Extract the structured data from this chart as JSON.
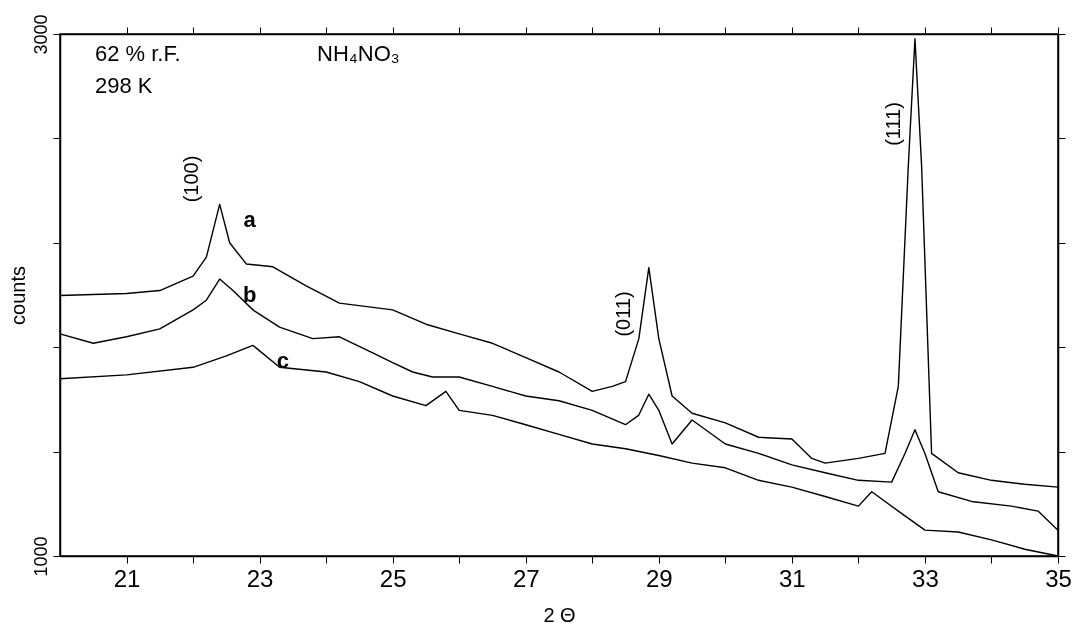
{
  "chart_data": {
    "type": "line",
    "xlabel": "2 Θ",
    "ylabel": "counts",
    "xlim": [
      20,
      35
    ],
    "ylim": [
      1000,
      3000
    ],
    "xticks": [
      21,
      {
        "value": 22,
        "label": null
      },
      23,
      {
        "value": 24,
        "label": null
      },
      25,
      {
        "value": 26,
        "label": null
      },
      27,
      {
        "value": 28,
        "label": null
      },
      29,
      {
        "value": 30,
        "label": null
      },
      31,
      {
        "value": 32,
        "label": null
      },
      33,
      {
        "value": 34,
        "label": null
      },
      35
    ],
    "yticks": [
      1000,
      {
        "value": 1400,
        "label": null
      },
      {
        "value": 1800,
        "label": null
      },
      {
        "value": 2200,
        "label": null
      },
      {
        "value": 2600,
        "label": null
      },
      3000
    ],
    "grid": false,
    "marker": "none",
    "line_style": "solid",
    "series": [
      {
        "name": "a",
        "color": "#000000",
        "x": [
          20,
          21,
          21.5,
          22,
          22.2,
          22.4,
          22.55,
          22.8,
          23.2,
          23.7,
          24.2,
          25,
          25.5,
          26,
          26.5,
          27,
          27.5,
          28,
          28.3,
          28.5,
          28.7,
          28.85,
          29,
          29.2,
          29.5,
          30,
          30.5,
          31,
          31.3,
          31.5,
          32,
          32.4,
          32.6,
          32.75,
          32.85,
          32.95,
          33.1,
          33.5,
          34,
          34.5,
          35
        ],
        "values": [
          1998,
          2006,
          2017,
          2072,
          2145,
          2347,
          2200,
          2119,
          2108,
          2035,
          1969,
          1943,
          1888,
          1851,
          1815,
          1760,
          1705,
          1631,
          1650,
          1668,
          1833,
          2105,
          1833,
          1613,
          1547,
          1510,
          1455,
          1448,
          1374,
          1356,
          1374,
          1393,
          1650,
          2494,
          2982,
          2494,
          1393,
          1319,
          1290,
          1275,
          1264
        ]
      },
      {
        "name": "b",
        "color": "#000000",
        "x": [
          20,
          20.5,
          21,
          21.5,
          22,
          22.2,
          22.4,
          22.6,
          22.9,
          23.3,
          23.8,
          24.2,
          24.7,
          25,
          25.3,
          25.6,
          26,
          26.5,
          27,
          27.5,
          28,
          28.5,
          28.7,
          28.85,
          29,
          29.2,
          29.5,
          30,
          30.5,
          31,
          31.5,
          32,
          32.5,
          32.7,
          32.85,
          33,
          33.2,
          33.7,
          34.3,
          34.7,
          35
        ],
        "values": [
          1851,
          1815,
          1840,
          1870,
          1943,
          1980,
          2061,
          2017,
          1943,
          1877,
          1833,
          1840,
          1778,
          1741,
          1705,
          1686,
          1686,
          1650,
          1613,
          1595,
          1558,
          1503,
          1540,
          1620,
          1558,
          1429,
          1521,
          1429,
          1393,
          1349,
          1319,
          1290,
          1283,
          1393,
          1484,
          1393,
          1246,
          1209,
          1191,
          1172,
          1099
        ]
      },
      {
        "name": "c",
        "color": "#000000",
        "x": [
          20,
          21,
          22,
          22.5,
          22.9,
          23.3,
          24,
          24.5,
          25,
          25.5,
          25.8,
          26,
          26.5,
          27,
          27.5,
          28,
          28.5,
          29,
          29.5,
          30,
          30.5,
          31,
          31.5,
          32,
          32.2,
          32.6,
          33,
          33.5,
          34,
          34.5,
          35
        ],
        "values": [
          1679,
          1694,
          1723,
          1767,
          1807,
          1723,
          1705,
          1668,
          1613,
          1576,
          1631,
          1558,
          1539,
          1503,
          1466,
          1429,
          1411,
          1385,
          1356,
          1338,
          1290,
          1264,
          1228,
          1191,
          1246,
          1172,
          1099,
          1092,
          1062,
          1026,
          1000
        ]
      }
    ],
    "annotations": [
      "62 % r.F.",
      "298 K",
      "NH₄NO₃",
      "(100)",
      "(011)",
      "(111)"
    ]
  }
}
